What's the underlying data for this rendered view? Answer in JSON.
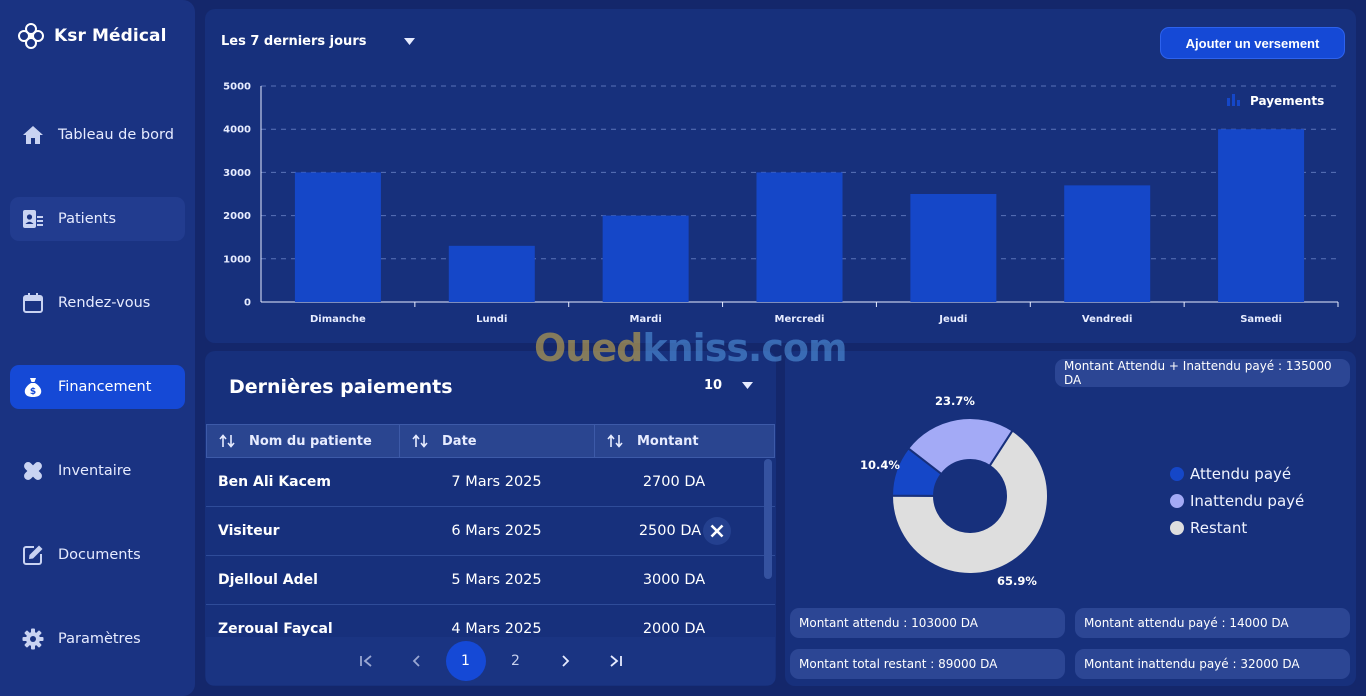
{
  "brand": {
    "name": "Ksr Médical"
  },
  "sidebar": {
    "items": [
      {
        "label": "Tableau de bord",
        "icon": "home-icon"
      },
      {
        "label": "Patients",
        "icon": "patient-card-icon"
      },
      {
        "label": "Rendez-vous",
        "icon": "calendar-icon"
      },
      {
        "label": "Financement",
        "icon": "money-bag-icon"
      },
      {
        "label": "Inventaire",
        "icon": "bandage-icon"
      },
      {
        "label": "Documents",
        "icon": "edit-document-icon"
      },
      {
        "label": "Paramètres",
        "icon": "gear-icon"
      }
    ],
    "active": "Financement"
  },
  "chart_panel": {
    "range_label": "Les 7 derniers jours",
    "add_button": "Ajouter un versement"
  },
  "chart_data": {
    "type": "bar",
    "categories": [
      "Dimanche",
      "Lundi",
      "Mardi",
      "Mercredi",
      "Jeudi",
      "Vendredi",
      "Samedi"
    ],
    "series": [
      {
        "name": "Payements",
        "values": [
          3000,
          1300,
          2000,
          3000,
          2500,
          2700,
          4000
        ]
      }
    ],
    "yticks": [
      "0",
      "1000",
      "2000",
      "3000",
      "4000",
      "5000"
    ],
    "ylim": [
      0,
      5000
    ],
    "grid": true,
    "legend_position": "top-right",
    "bar_color": "#1547c8"
  },
  "payments": {
    "title": "Dernières paiements",
    "page_size": "10",
    "columns": [
      "Nom du patiente",
      "Date",
      "Montant"
    ],
    "rows": [
      {
        "name": "Ben Ali Kacem",
        "date": "7 Mars 2025",
        "amount": "2700 DA"
      },
      {
        "name": "Visiteur",
        "date": "6 Mars 2025",
        "amount": "2500 DA"
      },
      {
        "name": "Djelloul Adel",
        "date": "5 Mars 2025",
        "amount": "3000 DA"
      },
      {
        "name": "Zeroual Faycal",
        "date": "4 Mars 2025",
        "amount": "2000 DA"
      }
    ],
    "pages": [
      "1",
      "2"
    ],
    "current_page": "1"
  },
  "summary": {
    "total_chip": "Montant Attendu + Inattendu payé : 135000 DA",
    "chips": [
      "Montant attendu : 103000 DA",
      "Montant attendu payé : 14000 DA",
      "Montant total restant : 89000 DA",
      "Montant inattendu payé : 32000 DA"
    ]
  },
  "donut": {
    "slices": [
      {
        "name": "Attendu payé",
        "percent": 10.4,
        "label": "10.4%",
        "color": "#1547c8"
      },
      {
        "name": "Inattendu payé",
        "percent": 23.7,
        "label": "23.7%",
        "color": "#a3aaf6"
      },
      {
        "name": "Restant",
        "percent": 65.9,
        "label": "65.9%",
        "color": "#dedede"
      }
    ]
  },
  "watermark": {
    "part1": "Oued",
    "part2": "kniss.com"
  }
}
